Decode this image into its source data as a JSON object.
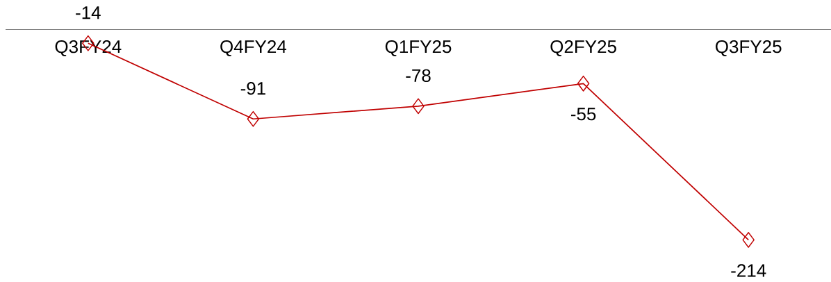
{
  "chart_data": {
    "type": "line",
    "categories": [
      "Q3FY24",
      "Q4FY24",
      "Q1FY25",
      "Q2FY25",
      "Q3FY25"
    ],
    "values": [
      -14,
      -91,
      -78,
      -55,
      -214
    ],
    "color": "#c00000",
    "marker": "diamond",
    "data_labels": true,
    "tick_labels": "x"
  }
}
